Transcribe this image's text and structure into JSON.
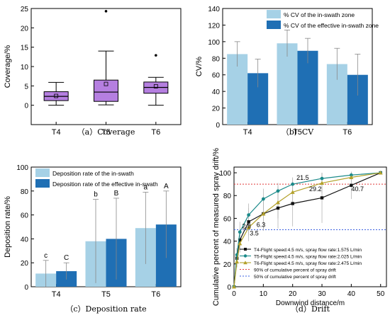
{
  "chart_data": [
    {
      "id": "a",
      "type": "box",
      "caption": "（a）Coverage",
      "ylabel": "Coverage/%",
      "ylim": [
        -5,
        25
      ],
      "yticks": [
        0,
        5,
        10,
        15,
        20,
        25
      ],
      "categories": [
        "T4",
        "T5",
        "T6"
      ],
      "box_color": "#b57fe0",
      "boxes": [
        {
          "whisker_low": 0.0,
          "q1": 1.2,
          "median": 2.3,
          "q3": 3.5,
          "whisker_high": 5.9,
          "mean": 2.4,
          "outliers": []
        },
        {
          "whisker_low": 0.1,
          "q1": 1.0,
          "median": 3.4,
          "q3": 6.5,
          "whisker_high": 14.0,
          "mean": 5.5,
          "outliers": [
            24.3
          ]
        },
        {
          "whisker_low": 0.0,
          "q1": 3.1,
          "median": 4.6,
          "q3": 6.0,
          "whisker_high": 7.2,
          "mean": 4.9,
          "outliers": [
            12.9
          ]
        }
      ]
    },
    {
      "id": "b",
      "type": "bar",
      "caption": "（b）CV",
      "ylabel": "CV/%",
      "ylim": [
        0,
        140
      ],
      "yticks": [
        0,
        20,
        40,
        60,
        80,
        100,
        120,
        140
      ],
      "categories": [
        "T4",
        "T5",
        "T6"
      ],
      "legend_position": "top-right",
      "series": [
        {
          "name": "% CV of the in-swath zone",
          "color": "#a6d1e6",
          "values": [
            85,
            98,
            73
          ],
          "errors": [
            15,
            16,
            19
          ]
        },
        {
          "name": "% CV of the effective in-swath zone",
          "color": "#1f6fb4",
          "values": [
            62,
            89,
            60
          ],
          "errors": [
            17,
            15,
            25
          ]
        }
      ]
    },
    {
      "id": "c",
      "type": "bar",
      "caption": "（c）Deposition rate",
      "ylabel": "Deposition rate/%",
      "ylim": [
        0,
        100
      ],
      "yticks": [
        0,
        20,
        40,
        60,
        80,
        100
      ],
      "categories": [
        "T4",
        "T5",
        "T6"
      ],
      "legend_position": "top-left",
      "series": [
        {
          "name": "Deposition rate of the in-swath",
          "color": "#a6d1e6",
          "values": [
            11,
            38,
            49
          ],
          "errors": [
            11,
            35,
            30
          ],
          "letters": [
            "c",
            "b",
            "a"
          ]
        },
        {
          "name": "Deposition rate of the effective in-swath",
          "color": "#1f6fb4",
          "values": [
            13,
            40,
            52
          ],
          "errors": [
            7,
            34,
            28
          ],
          "letters": [
            "C",
            "B",
            "A"
          ]
        }
      ]
    },
    {
      "id": "d",
      "type": "line",
      "caption": "（d）Drift",
      "xlabel": "Downwind distance/m",
      "ylabel": "Cumulative percent of measured spray drift/%",
      "xlim": [
        0,
        52
      ],
      "ylim": [
        0,
        105
      ],
      "xticks": [
        0,
        10,
        20,
        30,
        40,
        50
      ],
      "yticks": [
        0,
        20,
        40,
        60,
        80,
        100
      ],
      "series": [
        {
          "name": "T4-Flight speed:4.5 m/s, spray flow rate:1.575 L/min",
          "color": "#111111",
          "marker": "square",
          "x": [
            0,
            1,
            2,
            5,
            10,
            15,
            20,
            30,
            40,
            50
          ],
          "y": [
            0,
            25,
            41,
            57,
            64,
            69,
            73,
            78,
            89,
            100
          ],
          "errors": [
            0,
            5,
            8,
            12,
            15,
            18,
            20,
            22,
            12,
            0
          ]
        },
        {
          "name": "T5-Flight speed:4.5 m/s, spray flow rate:2.025 L/min",
          "color": "#1b8a8a",
          "marker": "circle",
          "x": [
            0,
            1,
            2,
            5,
            10,
            15,
            20,
            30,
            40,
            50
          ],
          "y": [
            0,
            28,
            48,
            63,
            77,
            84,
            90,
            95,
            98,
            100
          ],
          "errors": [
            0,
            6,
            9,
            10,
            9,
            7,
            6,
            4,
            2,
            0
          ]
        },
        {
          "name": "T6-Flight speed:4.5 m/s, spray flow rate:2.475 L/min",
          "color": "#b3a12a",
          "marker": "triangle",
          "x": [
            0,
            1,
            2,
            5,
            10,
            15,
            20,
            30,
            40,
            50
          ],
          "y": [
            0,
            22,
            38,
            52,
            64,
            74,
            83,
            91,
            96,
            100
          ],
          "errors": [
            0,
            5,
            8,
            12,
            14,
            14,
            12,
            9,
            5,
            0
          ]
        }
      ],
      "reference_lines": [
        {
          "name": "90% of cumulative percent of spray drift",
          "y": 90,
          "color": "#e03a3a"
        },
        {
          "name": "50% of cumulative percent of spray drift",
          "y": 50,
          "color": "#3a5fe0"
        }
      ],
      "annotations": [
        {
          "text": "2.8",
          "x": 2.8,
          "y": 50
        },
        {
          "text": "3.5",
          "x": 3.5,
          "y": 50
        },
        {
          "text": "6.3",
          "x": 6.3,
          "y": 50
        },
        {
          "text": "21.5",
          "x": 21.5,
          "y": 90
        },
        {
          "text": "29.2",
          "x": 29.2,
          "y": 90
        },
        {
          "text": "40.7",
          "x": 40.7,
          "y": 90
        }
      ]
    }
  ]
}
